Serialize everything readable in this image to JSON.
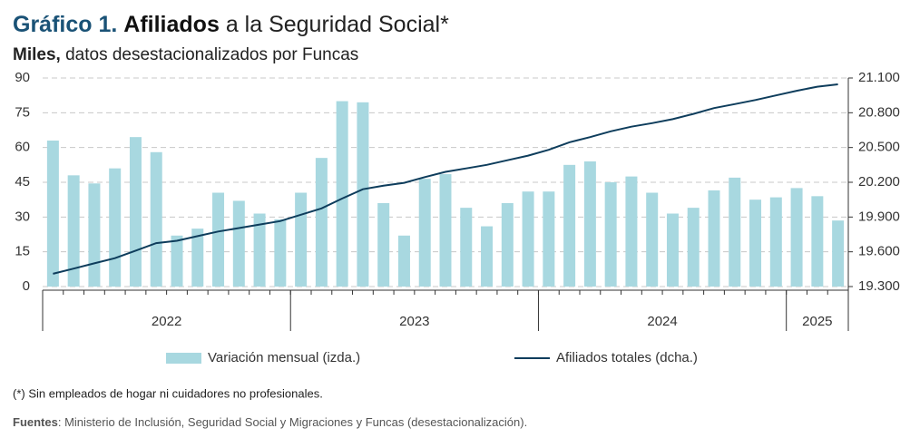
{
  "chart_data": {
    "type": "bar-line",
    "title_number": "Gráfico 1.",
    "title_bold": "Afiliados",
    "title_rest": "a la Seguridad Social*",
    "subtitle_bold": "Miles,",
    "subtitle_rest": "datos desestacionalizados por Funcas",
    "categories": [
      "2022",
      "2022",
      "2022",
      "2022",
      "2022",
      "2022",
      "2022",
      "2022",
      "2022",
      "2022",
      "2022",
      "2022",
      "2023",
      "2023",
      "2023",
      "2023",
      "2023",
      "2023",
      "2023",
      "2023",
      "2023",
      "2023",
      "2023",
      "2023",
      "2024",
      "2024",
      "2024",
      "2024",
      "2024",
      "2024",
      "2024",
      "2024",
      "2024",
      "2024",
      "2024",
      "2024",
      "2025",
      "2025",
      "2025"
    ],
    "series": [
      {
        "name": "Variación mensual (izda.)",
        "type": "bar",
        "color": "#a8d8e0",
        "values": [
          63,
          48,
          44.5,
          51,
          64.5,
          58,
          22,
          25,
          40.5,
          37,
          31.5,
          29,
          40.5,
          55.5,
          80,
          79.5,
          36,
          22,
          46.5,
          48.5,
          34,
          26,
          36,
          41,
          41,
          52.5,
          54,
          45,
          47.5,
          40.5,
          31.5,
          34,
          41.5,
          47,
          37.5,
          38.5,
          42.5,
          39,
          28.5
        ]
      },
      {
        "name": "Afiliados totales (dcha.)",
        "type": "line",
        "axis": "y2",
        "color": "#0e3d5c",
        "values": [
          19410,
          19455,
          19500,
          19545,
          19610,
          19675,
          19695,
          19735,
          19775,
          19805,
          19835,
          19865,
          19920,
          19975,
          20060,
          20140,
          20170,
          20195,
          20245,
          20290,
          20320,
          20350,
          20390,
          20430,
          20480,
          20545,
          20590,
          20640,
          20680,
          20710,
          20745,
          20790,
          20840,
          20875,
          20910,
          20950,
          20990,
          21025,
          21045
        ]
      }
    ],
    "ylim": [
      0,
      90
    ],
    "yticks": [
      0,
      15,
      30,
      45,
      60,
      75,
      90
    ],
    "y2lim": [
      19300,
      21100
    ],
    "y2ticks": [
      {
        "value": 19300,
        "label": "19.300"
      },
      {
        "value": 19600,
        "label": "19.600"
      },
      {
        "value": 19900,
        "label": "19.900"
      },
      {
        "value": 20200,
        "label": "20.200"
      },
      {
        "value": 20500,
        "label": "20.500"
      },
      {
        "value": 20800,
        "label": "20.800"
      },
      {
        "value": 21100,
        "label": "21.100"
      }
    ],
    "grid": true,
    "legend": "bottom",
    "footnote": "(*) Sin empleados de hogar ni cuidadores no profesionales.",
    "source_label": "Fuentes",
    "source_text": ": Ministerio de Inclusión, Seguridad Social y Migraciones y Funcas (desestacionalización)."
  }
}
